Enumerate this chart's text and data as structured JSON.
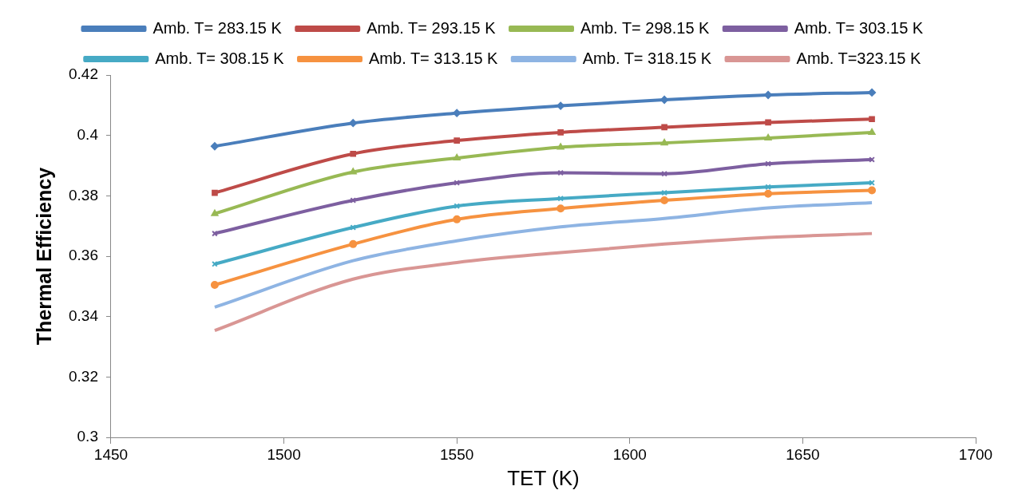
{
  "chart_data": {
    "type": "line",
    "xlabel": "TET (K)",
    "ylabel": "Thermal Efficiency",
    "x": [
      1480,
      1520,
      1550,
      1580,
      1610,
      1640,
      1670
    ],
    "series": [
      {
        "name": "Amb. T= 283.15 K",
        "color": "#4a7ebb",
        "marker": "diamond",
        "values": [
          0.3964,
          0.4041,
          0.4074,
          0.4098,
          0.4118,
          0.4134,
          0.4142
        ]
      },
      {
        "name": "Amb. T= 293.15 K",
        "color": "#be4b48",
        "marker": "square",
        "values": [
          0.381,
          0.3939,
          0.3983,
          0.401,
          0.4027,
          0.4043,
          0.4054
        ]
      },
      {
        "name": "Amb. T= 298.15 K",
        "color": "#98b954",
        "marker": "triangle",
        "values": [
          0.3741,
          0.3879,
          0.3925,
          0.3961,
          0.3975,
          0.3991,
          0.401
        ]
      },
      {
        "name": "Amb. T= 303.15 K",
        "color": "#7d5fa0",
        "marker": "cross",
        "values": [
          0.3675,
          0.3785,
          0.3843,
          0.3876,
          0.3873,
          0.3906,
          0.392
        ]
      },
      {
        "name": "Amb. T= 308.15 K",
        "color": "#46aac5",
        "marker": "cross",
        "values": [
          0.3574,
          0.3695,
          0.3766,
          0.3791,
          0.381,
          0.3829,
          0.3843
        ]
      },
      {
        "name": "Amb. T= 313.15 K",
        "color": "#f69240",
        "marker": "circle",
        "values": [
          0.3505,
          0.364,
          0.3722,
          0.3758,
          0.3785,
          0.3807,
          0.3818
        ]
      },
      {
        "name": "Amb. T= 318.15 K",
        "color": "#8eb4e3",
        "marker": "none",
        "values": [
          0.3431,
          0.3585,
          0.3651,
          0.3697,
          0.3725,
          0.376,
          0.3777
        ]
      },
      {
        "name": "Amb. T=323.15 K",
        "color": "#d99694",
        "marker": "none",
        "values": [
          0.3354,
          0.3524,
          0.3579,
          0.3612,
          0.364,
          0.3662,
          0.3675
        ]
      }
    ],
    "xlim": [
      1450,
      1700
    ],
    "xticks": [
      1450,
      1500,
      1550,
      1600,
      1650,
      1700
    ],
    "ylim": [
      0.3,
      0.42
    ],
    "yticks": [
      0.3,
      0.32,
      0.34,
      0.36,
      0.38,
      0.4,
      0.42
    ],
    "grid": false,
    "legend": "top"
  }
}
